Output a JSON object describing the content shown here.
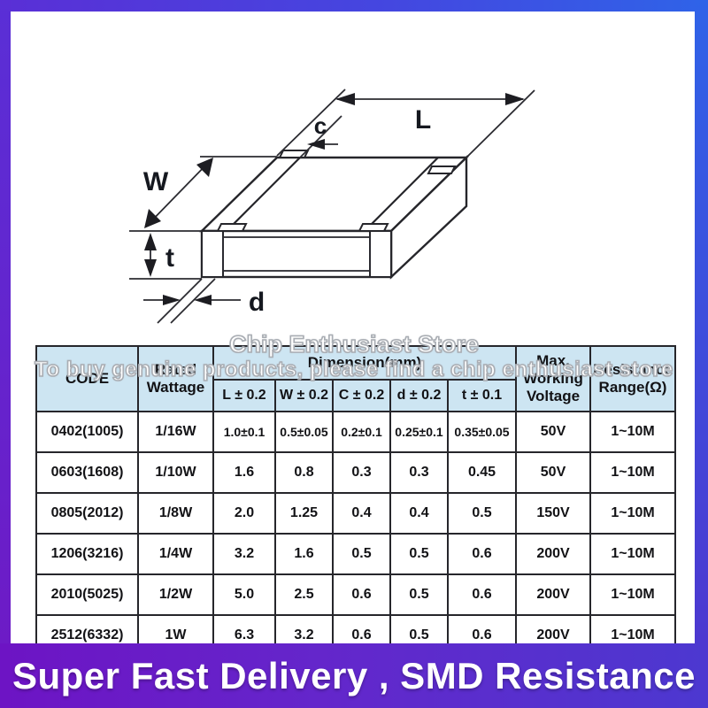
{
  "watermark": {
    "line1": "Chip Enthusiast Store",
    "line2": "To buy genuine products, please find a chip enthusiast store"
  },
  "diagram": {
    "labels": {
      "L": "L",
      "W": "W",
      "c": "c",
      "t": "t",
      "d": "d"
    }
  },
  "table": {
    "header": {
      "code": "CODE",
      "rated_wattage": "Rated Wattage",
      "dimension": "Dimension(mm)",
      "sub": [
        "L ± 0.2",
        "W ± 0.2",
        "C ± 0.2",
        "d ± 0.2",
        "t ± 0.1"
      ],
      "max_voltage": "Max. Working Voltage",
      "resistance": "Resistance Range(Ω)"
    },
    "rows": [
      [
        "0402(1005)",
        "1/16W",
        "1.0±0.1",
        "0.5±0.05",
        "0.2±0.1",
        "0.25±0.1",
        "0.35±0.05",
        "50V",
        "1~10M"
      ],
      [
        "0603(1608)",
        "1/10W",
        "1.6",
        "0.8",
        "0.3",
        "0.3",
        "0.45",
        "50V",
        "1~10M"
      ],
      [
        "0805(2012)",
        "1/8W",
        "2.0",
        "1.25",
        "0.4",
        "0.4",
        "0.5",
        "150V",
        "1~10M"
      ],
      [
        "1206(3216)",
        "1/4W",
        "3.2",
        "1.6",
        "0.5",
        "0.5",
        "0.6",
        "200V",
        "1~10M"
      ],
      [
        "2010(5025)",
        "1/2W",
        "5.0",
        "2.5",
        "0.6",
        "0.5",
        "0.6",
        "200V",
        "1~10M"
      ],
      [
        "2512(6332)",
        "1W",
        "6.3",
        "3.2",
        "0.6",
        "0.5",
        "0.6",
        "200V",
        "1~10M"
      ]
    ]
  },
  "banner": {
    "text": "Super Fast Delivery ,  SMD Resistance"
  },
  "colors": {
    "frame_purple": "#5a2fd6",
    "frame_blue": "#2f63e8",
    "banner_left": "#6d14c4",
    "banner_right": "#4c38d0",
    "table_header_bg": "#cde5f2",
    "line_color": "#26262b"
  }
}
